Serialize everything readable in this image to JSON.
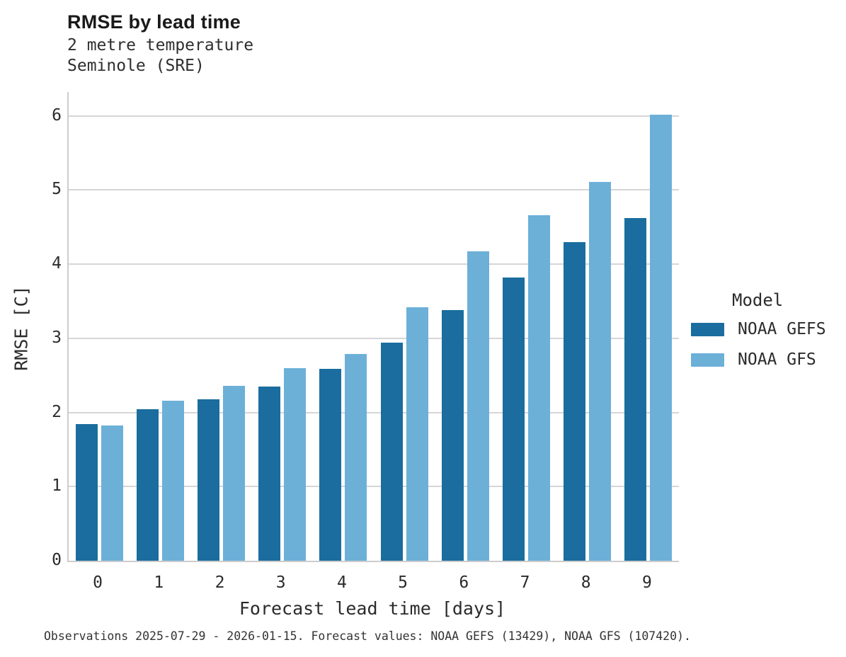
{
  "header": {
    "title": "RMSE by lead time",
    "subtitle_line1": "2 metre temperature",
    "subtitle_line2": "Seminole (SRE)"
  },
  "chart_data": {
    "type": "bar",
    "title": "RMSE by lead time",
    "subtitle": [
      "2 metre temperature",
      "Seminole (SRE)"
    ],
    "categories": [
      "0",
      "1",
      "2",
      "3",
      "4",
      "5",
      "6",
      "7",
      "8",
      "9"
    ],
    "series": [
      {
        "name": "NOAA GEFS",
        "color": "#1a6d9e",
        "values": [
          1.84,
          2.04,
          2.18,
          2.35,
          2.59,
          2.94,
          3.38,
          3.82,
          4.3,
          4.62
        ]
      },
      {
        "name": "NOAA GFS",
        "color": "#6cb0d8",
        "values": [
          1.82,
          2.16,
          2.36,
          2.6,
          2.79,
          3.42,
          4.17,
          4.66,
          5.11,
          6.01
        ]
      }
    ],
    "xlabel": "Forecast lead time [days]",
    "ylabel": "RMSE [C]",
    "ylim": [
      0,
      6.32
    ],
    "yticks": [
      0,
      1,
      2,
      3,
      4,
      5,
      6
    ],
    "grid": true,
    "grid_color": "#d6d6d6",
    "spine_color": "#cdcdcd",
    "legend_title": "Model",
    "legend_position": "right"
  },
  "legend": {
    "title": "Model",
    "entries": [
      {
        "label": "NOAA GEFS",
        "color": "#1a6d9e"
      },
      {
        "label": "NOAA GFS",
        "color": "#6cb0d8"
      }
    ]
  },
  "caption": "Observations 2025-07-29 - 2026-01-15. Forecast values: NOAA GEFS (13429), NOAA GFS (107420)."
}
